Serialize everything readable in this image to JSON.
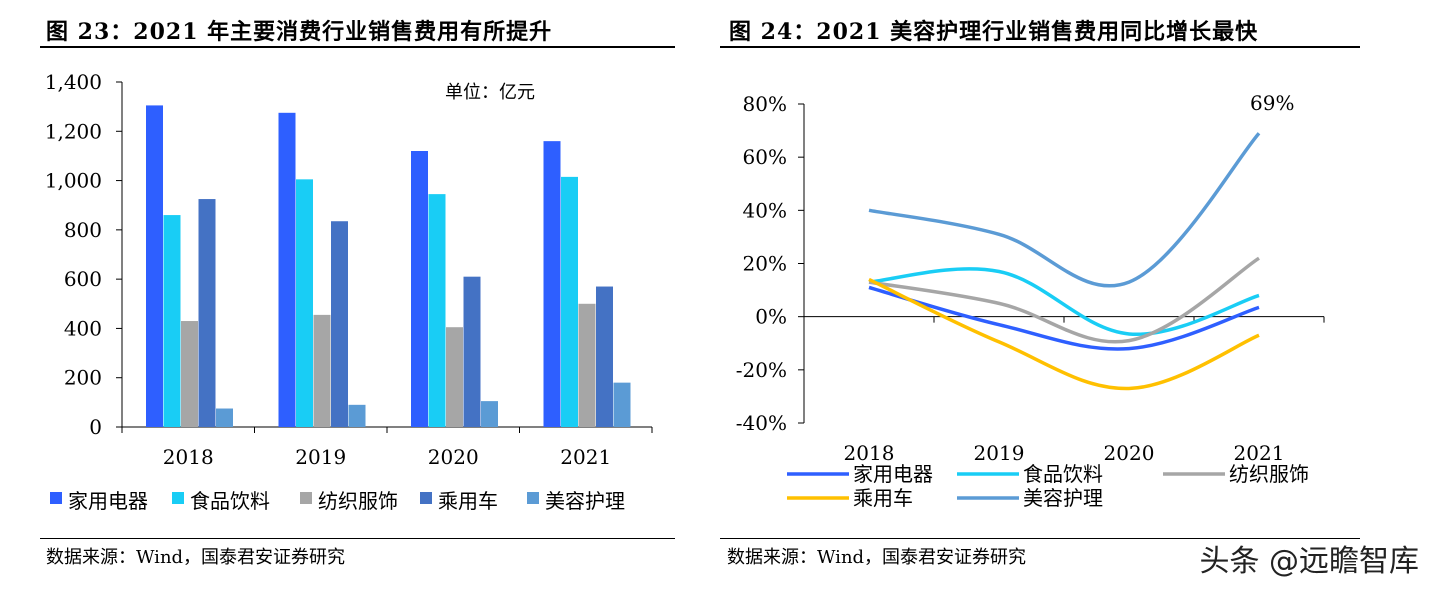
{
  "left": {
    "title": "图 23：2021 年主要消费行业销售费用有所提升",
    "unit_note": "单位：亿元",
    "source": "数据来源：Wind，国泰君安证券研究"
  },
  "right": {
    "title": "图 24：2021 美容护理行业销售费用同比增长最快",
    "annotation": "69%",
    "source": "数据来源：Wind，国泰君安证券研究"
  },
  "watermark": "头条 @远瞻智库",
  "chart_data": [
    {
      "type": "bar",
      "categories": [
        "2018",
        "2019",
        "2020",
        "2021"
      ],
      "ylim": [
        0,
        1400
      ],
      "yticks": [
        0,
        200,
        400,
        600,
        800,
        1000,
        1200,
        1400
      ],
      "ytick_labels": [
        "0",
        "200",
        "400",
        "600",
        "800",
        "1,000",
        "1,200",
        "1,400"
      ],
      "grid": false,
      "legend_position": "bottom",
      "series": [
        {
          "name": "家用电器",
          "color": "#2e5fff",
          "values": [
            1305,
            1275,
            1120,
            1160
          ]
        },
        {
          "name": "食品饮料",
          "color": "#19cdf5",
          "values": [
            860,
            1005,
            945,
            1015
          ]
        },
        {
          "name": "纺织服饰",
          "color": "#a6a6a6",
          "values": [
            430,
            455,
            405,
            500
          ]
        },
        {
          "name": "乘用车",
          "color": "#4472c4",
          "values": [
            925,
            835,
            610,
            570
          ]
        },
        {
          "name": "美容护理",
          "color": "#5b9bd5",
          "values": [
            75,
            90,
            105,
            180
          ]
        }
      ]
    },
    {
      "type": "line",
      "categories": [
        "2018",
        "2019",
        "2020",
        "2021"
      ],
      "ylim": [
        -0.4,
        0.8
      ],
      "yticks": [
        -0.4,
        -0.2,
        0,
        0.2,
        0.4,
        0.6,
        0.8
      ],
      "ytick_labels": [
        "-40%",
        "-20%",
        "0%",
        "20%",
        "40%",
        "60%",
        "80%"
      ],
      "grid": false,
      "legend_position": "bottom",
      "series": [
        {
          "name": "家用电器",
          "color": "#2e5fff",
          "values": [
            0.11,
            -0.03,
            -0.12,
            0.035
          ]
        },
        {
          "name": "食品饮料",
          "color": "#19cdf5",
          "values": [
            0.13,
            0.17,
            -0.065,
            0.08
          ]
        },
        {
          "name": "纺织服饰",
          "color": "#a6a6a6",
          "values": [
            0.13,
            0.05,
            -0.09,
            0.22
          ]
        },
        {
          "name": "乘用车",
          "color": "#ffc000",
          "values": [
            0.14,
            -0.095,
            -0.27,
            -0.07
          ]
        },
        {
          "name": "美容护理",
          "color": "#5b9bd5",
          "values": [
            0.4,
            0.31,
            0.13,
            0.69
          ]
        }
      ]
    }
  ]
}
